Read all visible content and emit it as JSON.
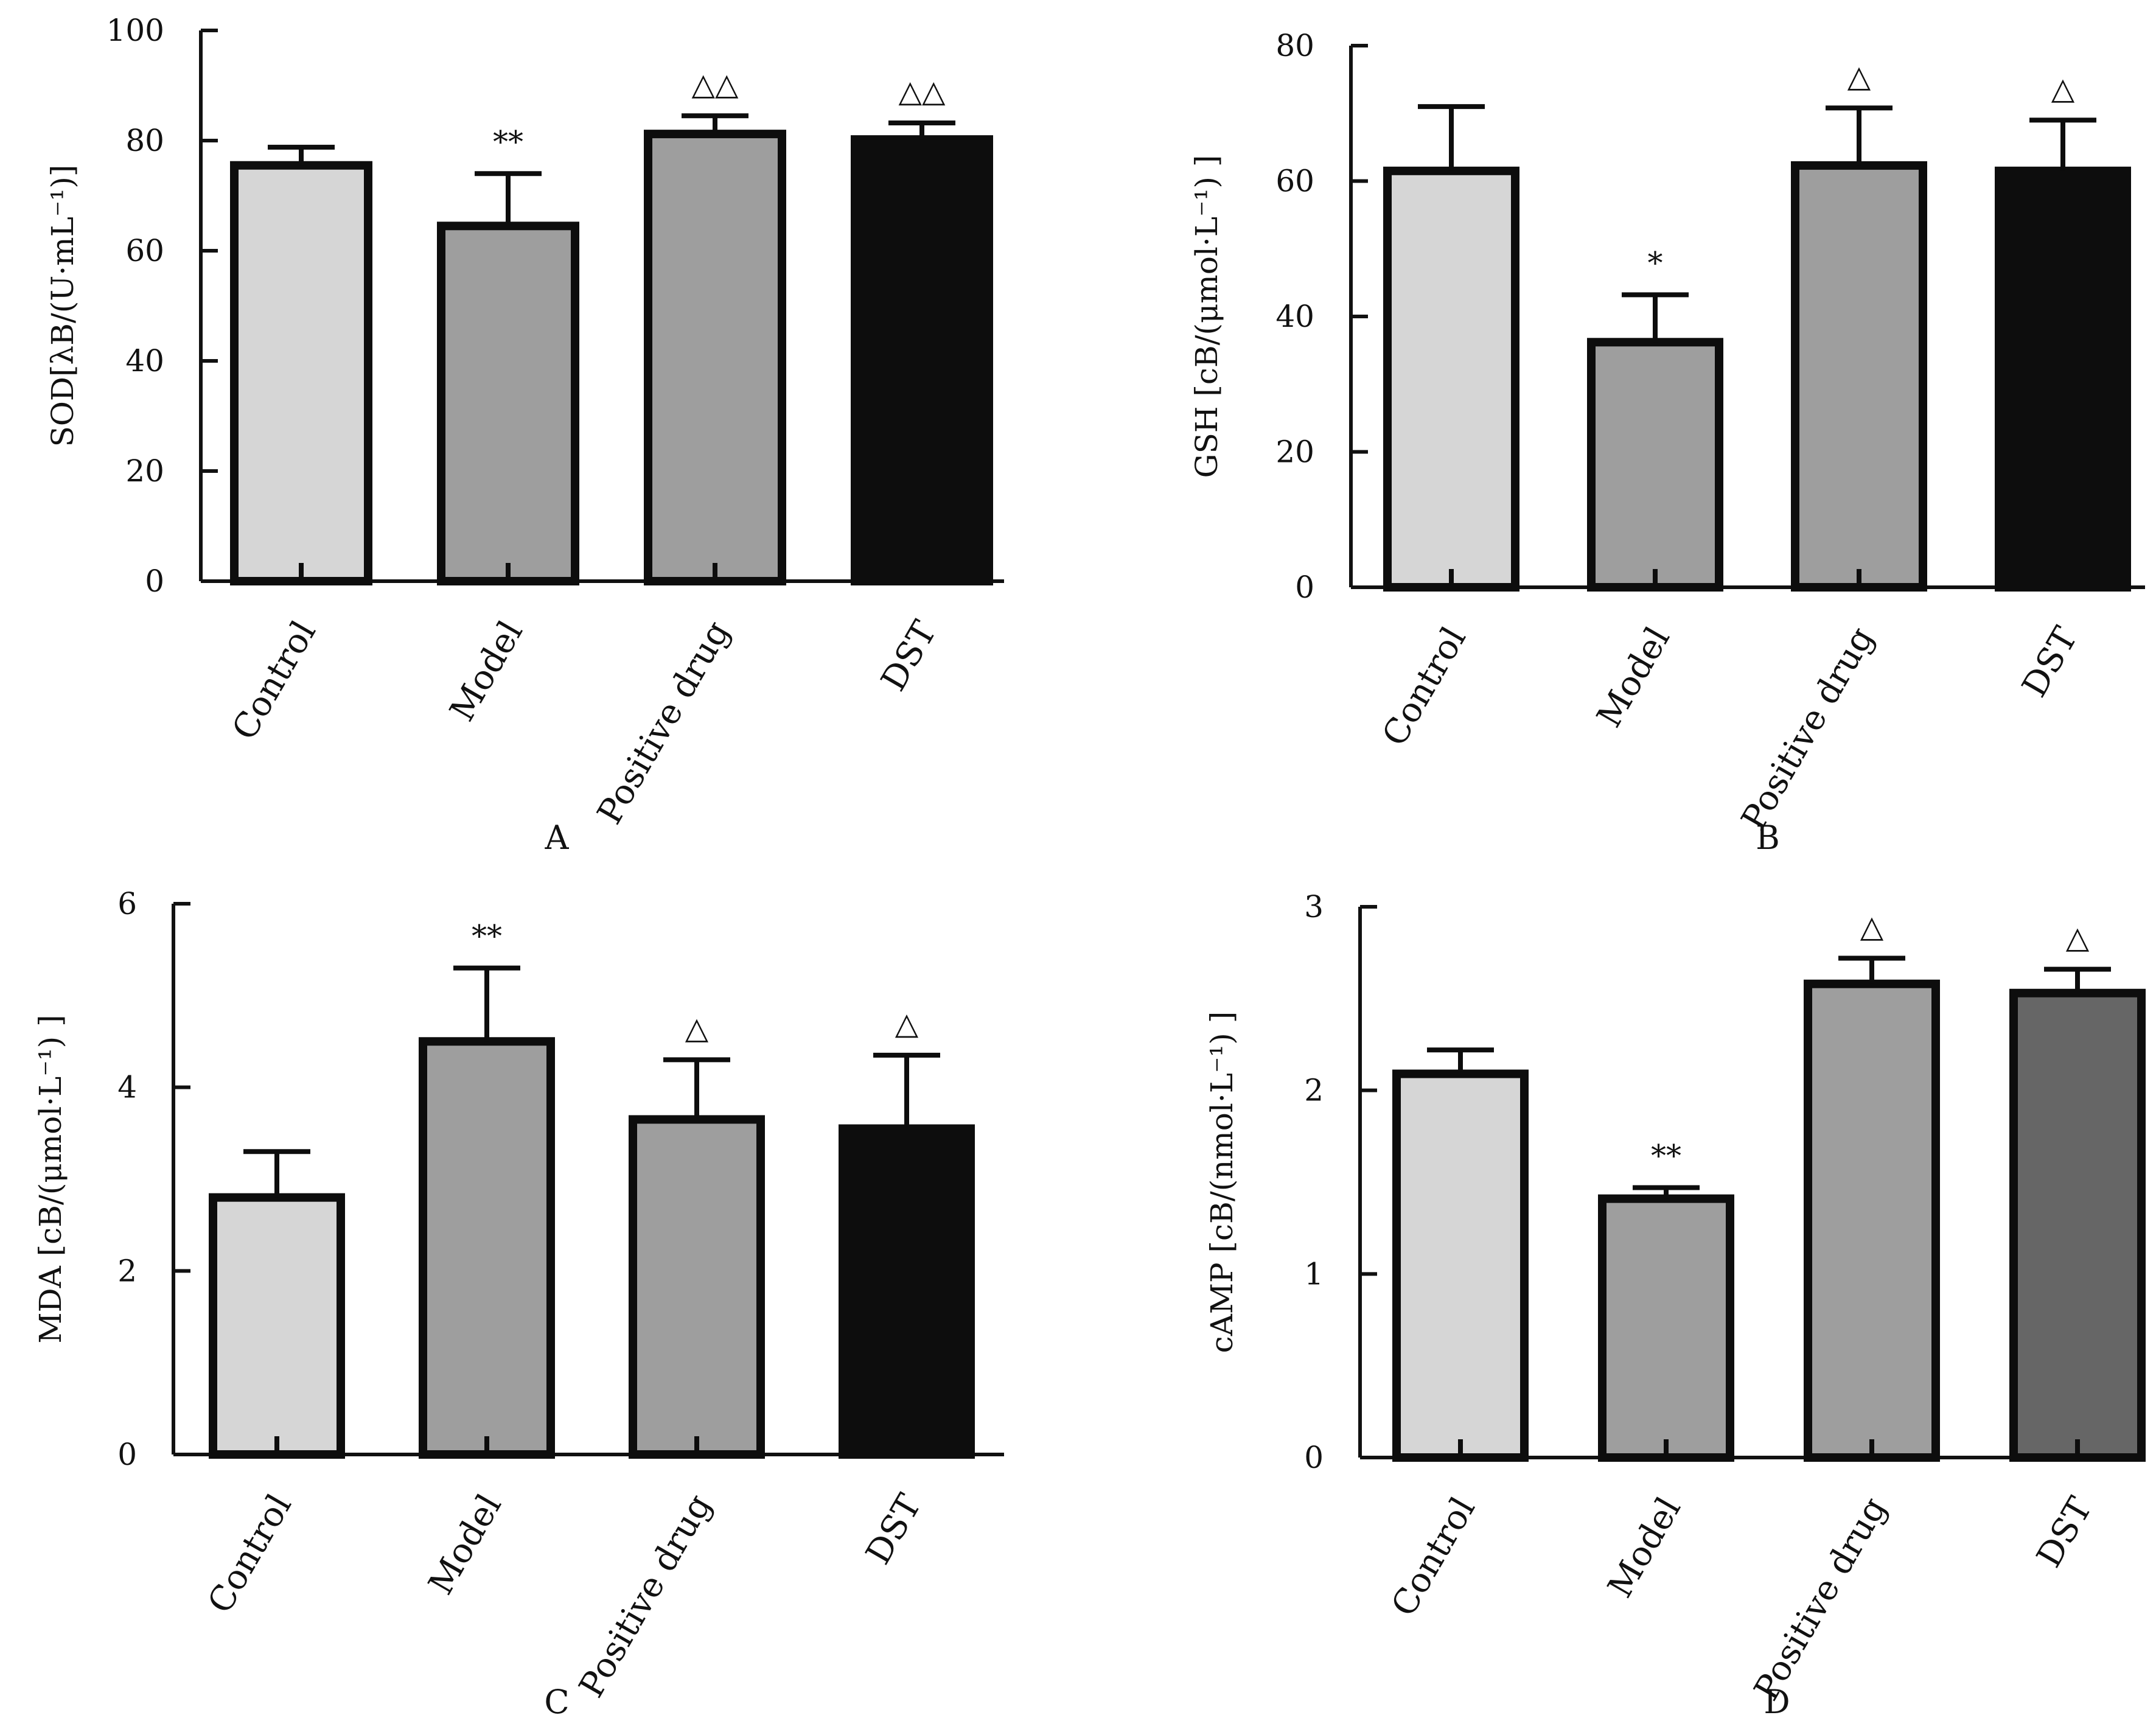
{
  "chart_data": [
    {
      "panel": "A",
      "type": "bar",
      "ylabel": "SOD[λB/(U·mL⁻¹)]",
      "categories": [
        "Control",
        "Model",
        "Positive drug",
        "DST"
      ],
      "values": [
        75.5,
        64.5,
        81.2,
        80.2
      ],
      "errors": [
        3.3,
        9.5,
        3.3,
        3.0
      ],
      "significance": [
        "",
        "**",
        "△△",
        "△△"
      ],
      "colors": [
        "#d6d6d6",
        "#9e9e9e",
        "#9e9e9e",
        "#0d0d0d"
      ],
      "ylim": [
        0,
        100
      ],
      "yticks": [
        0,
        20,
        40,
        60,
        80,
        100
      ]
    },
    {
      "panel": "B",
      "type": "bar",
      "ylabel": "GSH [cB/(μmol·L⁻¹) ]",
      "categories": [
        "Control",
        "Model",
        "Positive drug",
        "DST"
      ],
      "values": [
        61.5,
        36.2,
        62.3,
        61.5
      ],
      "errors": [
        9.5,
        7.0,
        8.5,
        7.5
      ],
      "significance": [
        "",
        "*",
        "△",
        "△"
      ],
      "colors": [
        "#d6d6d6",
        "#9e9e9e",
        "#9e9e9e",
        "#0d0d0d"
      ],
      "ylim": [
        0,
        80
      ],
      "yticks": [
        0,
        20,
        40,
        60,
        80
      ]
    },
    {
      "panel": "C",
      "type": "bar",
      "ylabel": "MDA [cB/(μmol·L⁻¹) ]",
      "categories": [
        "Control",
        "Model",
        "Positive drug",
        "DST"
      ],
      "values": [
        2.8,
        4.5,
        3.65,
        3.55
      ],
      "errors": [
        0.5,
        0.8,
        0.65,
        0.8
      ],
      "significance": [
        "",
        "**",
        "△",
        "△"
      ],
      "colors": [
        "#d6d6d6",
        "#9e9e9e",
        "#9e9e9e",
        "#0d0d0d"
      ],
      "ylim": [
        0,
        6
      ],
      "yticks": [
        0,
        2,
        4,
        6
      ]
    },
    {
      "panel": "D",
      "type": "bar",
      "ylabel": "cAMP [cB/(nmol·L⁻¹) ]",
      "categories": [
        "Control",
        "Model",
        "Positive drug",
        "DST"
      ],
      "values": [
        2.09,
        1.41,
        2.58,
        2.53
      ],
      "errors": [
        0.13,
        0.06,
        0.14,
        0.13
      ],
      "significance": [
        "",
        "**",
        "△",
        "△"
      ],
      "colors": [
        "#d6d6d6",
        "#9e9e9e",
        "#9e9e9e",
        "#666666"
      ],
      "ylim": [
        0,
        3
      ],
      "yticks": [
        0,
        1,
        2,
        3
      ]
    }
  ]
}
